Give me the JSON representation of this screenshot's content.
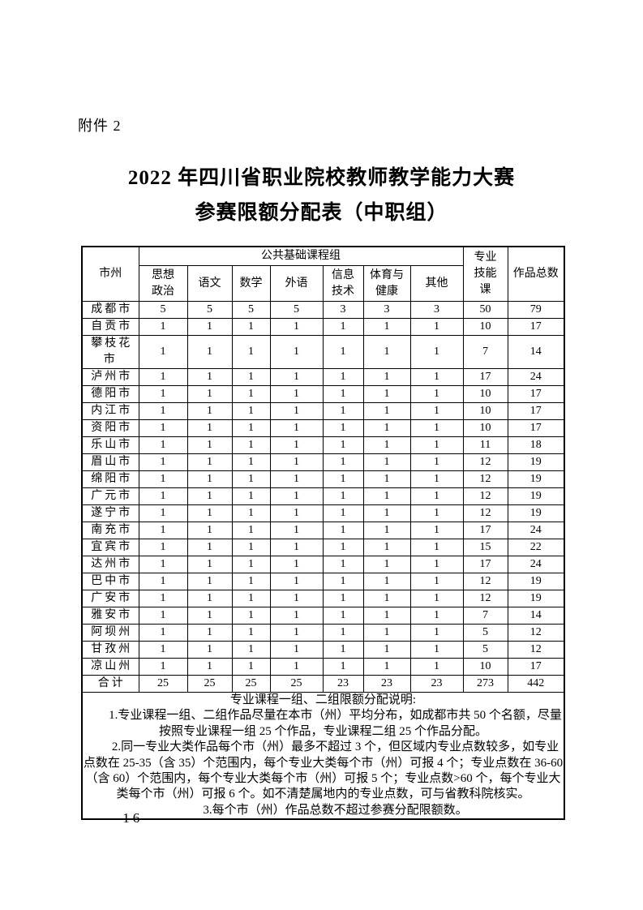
{
  "page": {
    "attachment_label": "附件 2",
    "title_line1": "2022 年四川省职业院校教师教学能力大赛",
    "title_line2": "参赛限额分配表（中职组）",
    "page_number": "— 16 —"
  },
  "table": {
    "header": {
      "city": "市州",
      "group": "公共基础课程组",
      "subjects": [
        "思想\n政治",
        "语文",
        "数学",
        "外语",
        "信息\n技术",
        "体育与\n健康",
        "其他"
      ],
      "skill": "专业\n技能\n课",
      "total": "作品总数"
    },
    "rows": [
      {
        "city": "成都市",
        "values": [
          5,
          5,
          5,
          5,
          3,
          3,
          3,
          50,
          79
        ]
      },
      {
        "city": "自贡市",
        "values": [
          1,
          1,
          1,
          1,
          1,
          1,
          1,
          10,
          17
        ]
      },
      {
        "city": "攀枝花市",
        "values": [
          1,
          1,
          1,
          1,
          1,
          1,
          1,
          7,
          14
        ]
      },
      {
        "city": "泸州市",
        "values": [
          1,
          1,
          1,
          1,
          1,
          1,
          1,
          17,
          24
        ]
      },
      {
        "city": "德阳市",
        "values": [
          1,
          1,
          1,
          1,
          1,
          1,
          1,
          10,
          17
        ]
      },
      {
        "city": "内江市",
        "values": [
          1,
          1,
          1,
          1,
          1,
          1,
          1,
          10,
          17
        ]
      },
      {
        "city": "资阳市",
        "values": [
          1,
          1,
          1,
          1,
          1,
          1,
          1,
          10,
          17
        ]
      },
      {
        "city": "乐山市",
        "values": [
          1,
          1,
          1,
          1,
          1,
          1,
          1,
          11,
          18
        ]
      },
      {
        "city": "眉山市",
        "values": [
          1,
          1,
          1,
          1,
          1,
          1,
          1,
          12,
          19
        ]
      },
      {
        "city": "绵阳市",
        "values": [
          1,
          1,
          1,
          1,
          1,
          1,
          1,
          12,
          19
        ]
      },
      {
        "city": "广元市",
        "values": [
          1,
          1,
          1,
          1,
          1,
          1,
          1,
          12,
          19
        ]
      },
      {
        "city": "遂宁市",
        "values": [
          1,
          1,
          1,
          1,
          1,
          1,
          1,
          12,
          19
        ]
      },
      {
        "city": "南充市",
        "values": [
          1,
          1,
          1,
          1,
          1,
          1,
          1,
          17,
          24
        ]
      },
      {
        "city": "宜宾市",
        "values": [
          1,
          1,
          1,
          1,
          1,
          1,
          1,
          15,
          22
        ]
      },
      {
        "city": "达州市",
        "values": [
          1,
          1,
          1,
          1,
          1,
          1,
          1,
          17,
          24
        ]
      },
      {
        "city": "巴中市",
        "values": [
          1,
          1,
          1,
          1,
          1,
          1,
          1,
          12,
          19
        ]
      },
      {
        "city": "广安市",
        "values": [
          1,
          1,
          1,
          1,
          1,
          1,
          1,
          12,
          19
        ]
      },
      {
        "city": "雅安市",
        "values": [
          1,
          1,
          1,
          1,
          1,
          1,
          1,
          7,
          14
        ]
      },
      {
        "city": "阿坝州",
        "values": [
          1,
          1,
          1,
          1,
          1,
          1,
          1,
          5,
          12
        ]
      },
      {
        "city": "甘孜州",
        "values": [
          1,
          1,
          1,
          1,
          1,
          1,
          1,
          5,
          12
        ]
      },
      {
        "city": "凉山州",
        "values": [
          1,
          1,
          1,
          1,
          1,
          1,
          1,
          10,
          17
        ]
      },
      {
        "city": "合计",
        "values": [
          25,
          25,
          25,
          25,
          23,
          23,
          23,
          273,
          442
        ]
      }
    ],
    "notes_title": "专业课程一组、二组限额分配说明:",
    "notes": [
      "1.专业课程一组、二组作品尽量在本市（州）平均分布，如成都市共 50 个名额，尽量按照专业课程一组 25 个作品，专业课程二组 25 个作品分配。",
      "2.同一专业大类作品每个市（州）最多不超过 3 个，但区域内专业点数较多，如专业点数在 25-35（含 35）个范围内，每个专业大类每个市（州）可报 4 个；专业点数在 36-60（含 60）个范围内，每个专业大类每个市（州）可报 5 个；专业点数>60 个，每个专业大类每个市（州）可报 6 个。如不清楚属地内的专业点数，可与省教科院核实。",
      "3.每个市（州）作品总数不超过参赛分配限额数。"
    ]
  }
}
